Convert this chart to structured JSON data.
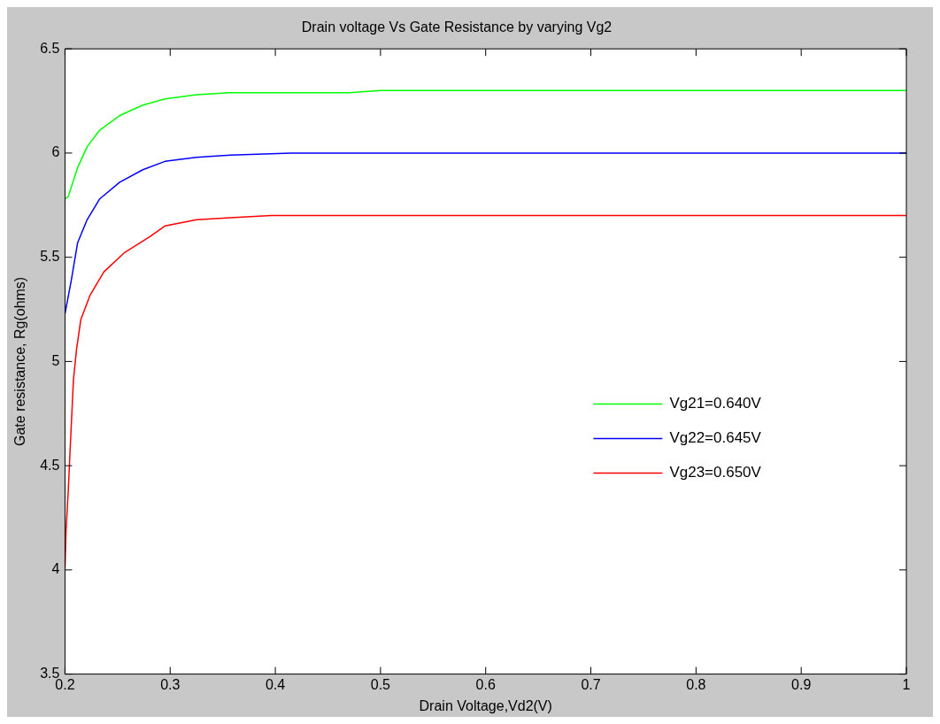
{
  "chart_data": {
    "type": "line",
    "title": "Drain voltage Vs Gate Resistance by varying Vg2",
    "xlabel": "Drain Voltage,Vd2(V)",
    "ylabel": "Gate resistance, Rg(ohms)",
    "xlim": [
      0.2,
      1
    ],
    "ylim": [
      3.5,
      6.5
    ],
    "xticks": [
      0.2,
      0.3,
      0.4,
      0.5,
      0.6,
      0.7,
      0.8,
      0.9,
      1
    ],
    "yticks": [
      3.5,
      4,
      4.5,
      5,
      5.5,
      6,
      6.5
    ],
    "grid": false,
    "legend": "right",
    "marker": "none",
    "line_style": "solid",
    "series": [
      {
        "name": "Vg21=0.640V",
        "color": "#00ff00",
        "x": [
          0.2,
          0.203,
          0.212,
          0.221,
          0.233,
          0.252,
          0.274,
          0.295,
          0.325,
          0.357,
          0.47,
          0.5,
          1
        ],
        "values": [
          5.78,
          5.79,
          5.93,
          6.03,
          6.11,
          6.18,
          6.23,
          6.26,
          6.28,
          6.29,
          6.29,
          6.3,
          6.3
        ]
      },
      {
        "name": "Vg22=0.645V",
        "color": "#0000ff",
        "x": [
          0.2,
          0.206,
          0.212,
          0.221,
          0.233,
          0.252,
          0.274,
          0.295,
          0.325,
          0.357,
          0.415,
          1
        ],
        "values": [
          5.23,
          5.39,
          5.57,
          5.68,
          5.78,
          5.86,
          5.92,
          5.96,
          5.98,
          5.99,
          6.0,
          6.0
        ]
      },
      {
        "name": "Vg23=0.650V",
        "color": "#ff0000",
        "x": [
          0.2,
          0.201,
          0.203,
          0.205,
          0.208,
          0.211,
          0.215,
          0.224,
          0.237,
          0.256,
          0.281,
          0.295,
          0.325,
          0.357,
          0.396,
          1
        ],
        "values": [
          4.01,
          4.19,
          4.37,
          4.59,
          4.91,
          5.06,
          5.2,
          5.32,
          5.43,
          5.52,
          5.6,
          5.65,
          5.68,
          5.69,
          5.7,
          5.7
        ]
      }
    ]
  }
}
